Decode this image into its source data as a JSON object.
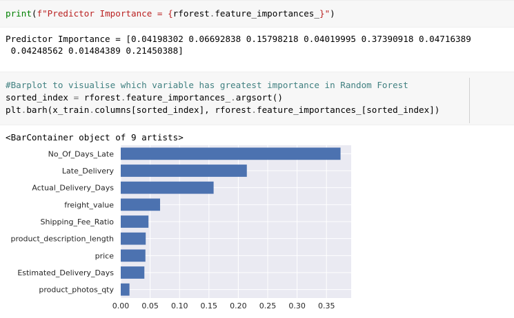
{
  "cells": [
    {
      "id": "cell1",
      "code_parts": [
        {
          "t": "print",
          "c": "kw-builtin"
        },
        {
          "t": "(",
          "c": ""
        },
        {
          "t": "f\"Predictor Importance = {",
          "c": "str"
        },
        {
          "t": "rforest",
          "c": ""
        },
        {
          "t": ".",
          "c": "op"
        },
        {
          "t": "feature_importances_",
          "c": ""
        },
        {
          "t": "}\"",
          "c": "str"
        },
        {
          "t": ")",
          "c": ""
        }
      ],
      "output": [
        "Predictor Importance = [0.04198302 0.06692838 0.15798218 0.04019995 0.37390918 0.04716389",
        " 0.04248562 0.01484389 0.21450388]"
      ]
    },
    {
      "id": "cell2",
      "code_lines": [
        [
          {
            "t": "#Barplot to visualise which variable has greatest importance in Random Forest",
            "c": "comment"
          }
        ],
        [
          {
            "t": "sorted_index ",
            "c": ""
          },
          {
            "t": "=",
            "c": "op"
          },
          {
            "t": " rforest",
            "c": ""
          },
          {
            "t": ".",
            "c": "op"
          },
          {
            "t": "feature_importances_",
            "c": ""
          },
          {
            "t": ".",
            "c": "op"
          },
          {
            "t": "argsort()",
            "c": ""
          }
        ],
        [
          {
            "t": "plt",
            "c": ""
          },
          {
            "t": ".",
            "c": "op"
          },
          {
            "t": "barh(x_train",
            "c": ""
          },
          {
            "t": ".",
            "c": "op"
          },
          {
            "t": "columns[sorted_index], rforest",
            "c": ""
          },
          {
            "t": ".",
            "c": "op"
          },
          {
            "t": "feature_importances_[sorted_index])",
            "c": ""
          }
        ]
      ],
      "output": [
        "<BarContainer object of 9 artists>"
      ]
    }
  ],
  "colors": {
    "bar": "#4c72b0",
    "plot_bg": "#eaeaf2",
    "grid": "#ffffff"
  },
  "chart_data": {
    "type": "bar",
    "orientation": "horizontal",
    "categories": [
      "product_photos_qty",
      "Estimated_Delivery_Days",
      "price",
      "product_description_length",
      "Shipping_Fee_Ratio",
      "freight_value",
      "Actual_Delivery_Days",
      "Late_Delivery",
      "No_Of_Days_Late"
    ],
    "values": [
      0.01484389,
      0.04019995,
      0.04198302,
      0.04248562,
      0.04716389,
      0.06692838,
      0.15798218,
      0.21450388,
      0.37390918
    ],
    "xticks": [
      "0.00",
      "0.05",
      "0.10",
      "0.15",
      "0.20",
      "0.25",
      "0.30",
      "0.35"
    ],
    "xlim": [
      0,
      0.392
    ],
    "grid": true,
    "title": "",
    "xlabel": "",
    "ylabel": ""
  }
}
